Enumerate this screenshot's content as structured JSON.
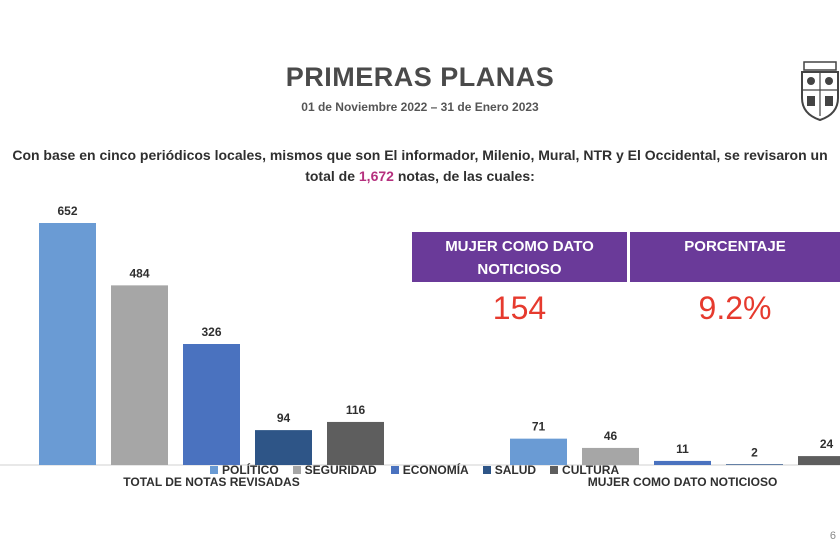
{
  "header": {
    "title": "PRIMERAS PLANAS",
    "subtitle": "01 de Noviembre 2022 – 31 de Enero 2023"
  },
  "intro": {
    "before": "Con base en cinco periódicos locales, mismos que son El informador, Milenio, Mural, NTR y El Occidental, se revisaron un total de ",
    "highlight": "1,672",
    "after": " notas, de las cuales:"
  },
  "kpi": {
    "left_header": "MUJER COMO DATO NOTICIOSO",
    "left_value": "154",
    "right_header": "PORCENTAJE",
    "right_value": "9.2%"
  },
  "colors": {
    "politico": "#6a9bd4",
    "seguridad": "#a6a6a6",
    "economia": "#4a72bf",
    "salud": "#2e5587",
    "cultura": "#5e5e5e",
    "kpi_header": "#6a3a99",
    "kpi_value": "#e63a2e",
    "highlight": "#b5307e"
  },
  "chart_data": {
    "type": "bar",
    "categories": [
      "TOTAL DE NOTAS REVISADAS",
      "MUJER COMO DATO NOTICIOSO"
    ],
    "series": [
      {
        "name": "POLÍTICO",
        "values": [
          652,
          71
        ]
      },
      {
        "name": "SEGURIDAD",
        "values": [
          484,
          46
        ]
      },
      {
        "name": "ECONOMÍA",
        "values": [
          326,
          11
        ]
      },
      {
        "name": "SALUD",
        "values": [
          94,
          2
        ]
      },
      {
        "name": "CULTURA",
        "values": [
          116,
          24
        ]
      }
    ],
    "ylim": [
      0,
      652
    ],
    "legend": "bottom",
    "data_labels": true,
    "grid": false
  },
  "page_number": "6"
}
